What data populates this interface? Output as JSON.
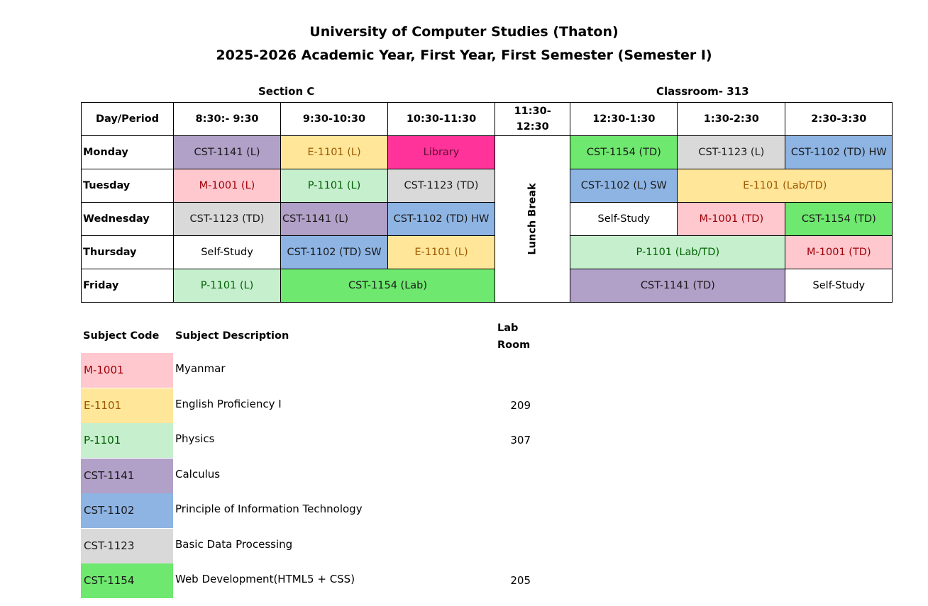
{
  "header": {
    "title_line1": "University of Computer Studies (Thaton)",
    "title_line2": "2025-2026 Academic Year, First Year, First Semester (Semester I)",
    "section": "Section C",
    "classroom": "Classroom- 313"
  },
  "colors": {
    "CST-1141": {
      "bg": "#b1a0c7",
      "fg": "#1a1a1a"
    },
    "E-1101": {
      "bg": "#ffe699",
      "fg": "#9c5700"
    },
    "Library": {
      "bg": "#ff3399",
      "fg": "#5a1030"
    },
    "M-1001": {
      "bg": "#ffc7ce",
      "fg": "#9c0006"
    },
    "P-1101": {
      "bg": "#c6efce",
      "fg": "#006100"
    },
    "CST-1123": {
      "bg": "#d9d9d9",
      "fg": "#1a1a1a"
    },
    "CST-1102": {
      "bg": "#8eb4e3",
      "fg": "#1a1a1a"
    },
    "CST-1154": {
      "bg": "#6ee86e",
      "fg": "#1a1a1a"
    },
    "none": {
      "bg": "#ffffff",
      "fg": "#000000"
    }
  },
  "timetable": {
    "headers": [
      "Day/Period",
      "8:30:- 9:30",
      "9:30-10:30",
      "10:30-11:30",
      "11:30-\n12:30",
      "12:30-1:30",
      "1:30-2:30",
      "2:30-3:30"
    ],
    "lunch_label": "Lunch Break",
    "rows": [
      {
        "day": "Monday",
        "cells": [
          {
            "text": "CST-1141 (L)",
            "subject": "CST-1141",
            "span": 1
          },
          {
            "text": "E-1101 (L)",
            "subject": "E-1101",
            "span": 1
          },
          {
            "text": "Library",
            "subject": "Library",
            "span": 1
          },
          {
            "lunch": true
          },
          {
            "text": "CST-1154 (TD)",
            "subject": "CST-1154",
            "span": 1
          },
          {
            "text": "CST-1123 (L)",
            "subject": "CST-1123",
            "span": 1
          },
          {
            "text": "CST-1102 (TD) HW",
            "subject": "CST-1102",
            "span": 1
          }
        ]
      },
      {
        "day": "Tuesday",
        "cells": [
          {
            "text": "M-1001 (L)",
            "subject": "M-1001",
            "span": 1
          },
          {
            "text": "P-1101 (L)",
            "subject": "P-1101",
            "span": 1
          },
          {
            "text": "CST-1123 (TD)",
            "subject": "CST-1123",
            "span": 1
          },
          {
            "text": "CST-1102 (L) SW",
            "subject": "CST-1102",
            "span": 1
          },
          {
            "text": "E-1101 (Lab/TD)",
            "subject": "E-1101",
            "span": 2
          }
        ]
      },
      {
        "day": "Wednesday",
        "cells": [
          {
            "text": "CST-1123 (TD)",
            "subject": "CST-1123",
            "span": 1
          },
          {
            "text": "CST-1141 (L)",
            "subject": "CST-1141",
            "span": 1,
            "left": true
          },
          {
            "text": "CST-1102 (TD) HW",
            "subject": "CST-1102",
            "span": 1
          },
          {
            "text": "Self-Study",
            "subject": "none",
            "span": 1
          },
          {
            "text": "M-1001 (TD)",
            "subject": "M-1001",
            "span": 1
          },
          {
            "text": "CST-1154 (TD)",
            "subject": "CST-1154",
            "span": 1
          }
        ]
      },
      {
        "day": "Thursday",
        "cells": [
          {
            "text": "Self-Study",
            "subject": "none",
            "span": 1
          },
          {
            "text": "CST-1102 (TD) SW",
            "subject": "CST-1102",
            "span": 1
          },
          {
            "text": "E-1101 (L)",
            "subject": "E-1101",
            "span": 1
          },
          {
            "text": "P-1101 (Lab/TD)",
            "subject": "P-1101",
            "span": 2
          },
          {
            "text": "M-1001 (TD)",
            "subject": "M-1001",
            "span": 1
          }
        ]
      },
      {
        "day": "Friday",
        "cells": [
          {
            "text": "P-1101 (L)",
            "subject": "P-1101",
            "span": 1
          },
          {
            "text": "CST-1154 (Lab)",
            "subject": "CST-1154",
            "span": 2
          },
          {
            "text": "CST-1141 (TD)",
            "subject": "CST-1141",
            "span": 2
          },
          {
            "text": "Self-Study",
            "subject": "none",
            "span": 1
          }
        ]
      }
    ]
  },
  "legend": {
    "code_header": "Subject Code",
    "desc_header": "Subject Description",
    "room_header_line1": "Lab",
    "room_header_line2": "Room",
    "items": [
      {
        "code": "M-1001",
        "desc": "Myanmar",
        "room": ""
      },
      {
        "code": "E-1101",
        "desc": "English Proficiency I",
        "room": "209"
      },
      {
        "code": "P-1101",
        "desc": "Physics",
        "room": "307"
      },
      {
        "code": "CST-1141",
        "desc": "Calculus",
        "room": ""
      },
      {
        "code": "CST-1102",
        "desc": "Principle of Information Technology",
        "room": ""
      },
      {
        "code": "CST-1123",
        "desc": "Basic Data Processing",
        "room": ""
      },
      {
        "code": "CST-1154",
        "desc": "Web Development(HTML5 + CSS)",
        "room": "205"
      }
    ]
  }
}
